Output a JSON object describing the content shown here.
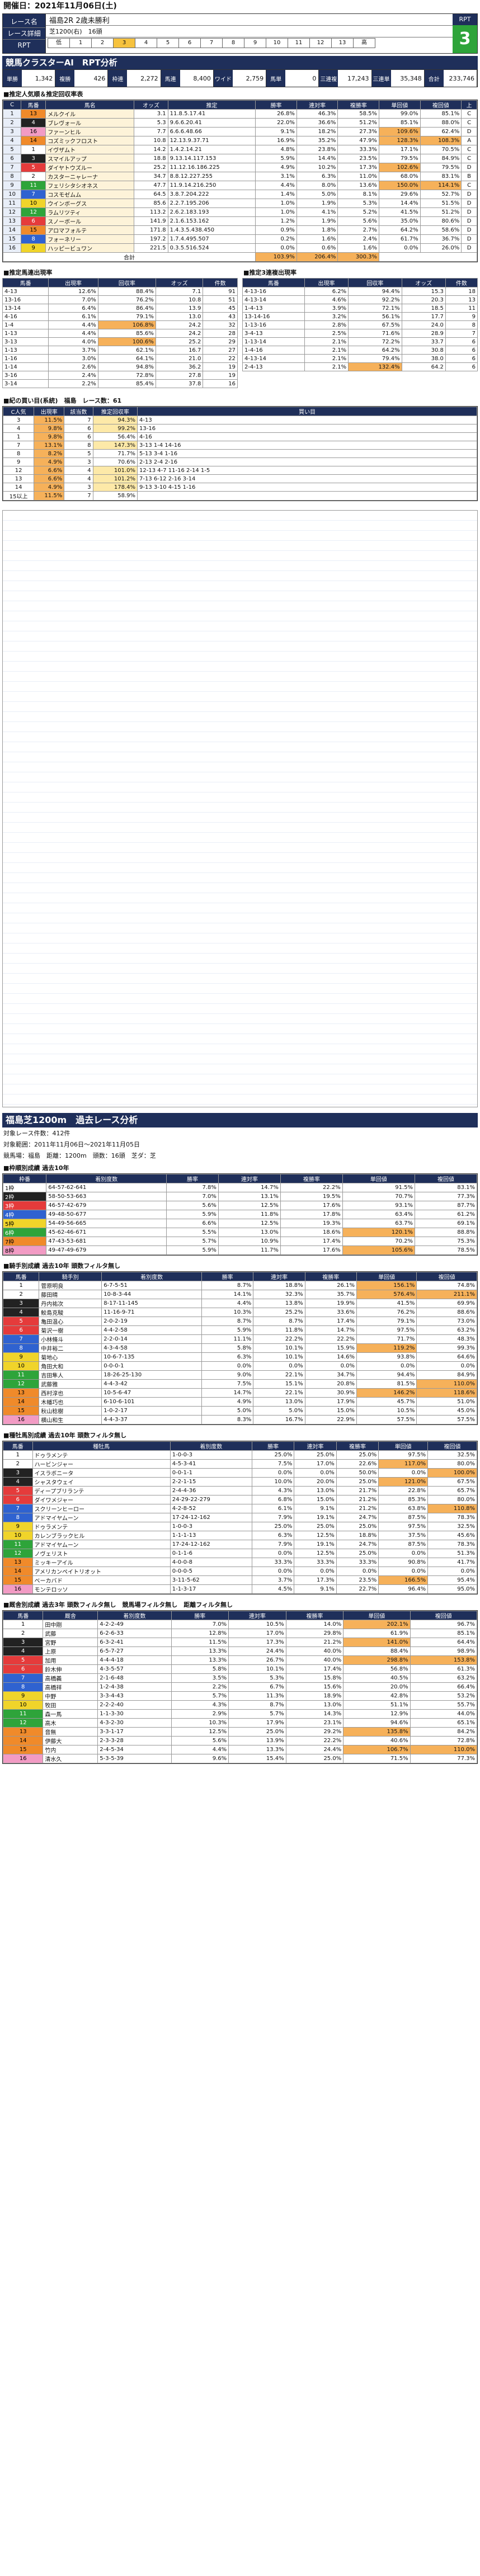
{
  "header": {
    "date": "開催日：2021年11月06日(土)"
  },
  "race": {
    "name_label": "レース名",
    "name": "福島2R 2歳未勝利",
    "detail_label": "レース詳細",
    "detail": "芝1200(右)　16頭",
    "rpt_label": "RPT",
    "rpt_value": "3",
    "rpt_scale": [
      "低",
      "1",
      "2",
      "3",
      "4",
      "5",
      "6",
      "7",
      "8",
      "9",
      "10",
      "11",
      "12",
      "13",
      "高"
    ],
    "rpt_on": "3"
  },
  "cluster_title": "競馬クラスターAI　RPT分析",
  "odds_strip": [
    {
      "k": "単勝",
      "v": "1,342"
    },
    {
      "k": "複勝",
      "v": "426"
    },
    {
      "k": "枠連",
      "v": "2,272"
    },
    {
      "k": "馬連",
      "v": "8,400"
    },
    {
      "k": "ワイド",
      "v": "2,759"
    },
    {
      "k": "馬単",
      "v": "0"
    },
    {
      "k": "三連複",
      "v": "17,243"
    },
    {
      "k": "三連単",
      "v": "35,348"
    },
    {
      "k": "合計",
      "v": "233,746"
    }
  ],
  "pop_title": "■推定人気順＆推定回収率表",
  "pop_headers": [
    "C",
    "馬番",
    "馬名",
    "オッズ",
    "推定",
    "勝率",
    "連対率",
    "複勝率",
    "単回値",
    "複回値",
    "上"
  ],
  "pop_rows": [
    [
      "1",
      "13",
      "メルクイル",
      "3.1",
      "11.8.5.17.41",
      "26.8%",
      "46.3%",
      "58.5%",
      "99.0%",
      "85.1%",
      "C"
    ],
    [
      "2",
      "4",
      "ブレヴォール",
      "5.3",
      "9.6.6.20.41",
      "22.0%",
      "36.6%",
      "51.2%",
      "85.1%",
      "88.0%",
      "C"
    ],
    [
      "3",
      "16",
      "ファーンヒル",
      "7.7",
      "6.6.6.48.66",
      "9.1%",
      "18.2%",
      "27.3%",
      "109.6%",
      "62.4%",
      "D"
    ],
    [
      "4",
      "14",
      "コズミックフロスト",
      "10.8",
      "12.13.9.37.71",
      "16.9%",
      "35.2%",
      "47.9%",
      "128.3%",
      "108.3%",
      "A"
    ],
    [
      "5",
      "1",
      "イヴザムト",
      "14.2",
      "1.4.2.14.21",
      "4.8%",
      "23.8%",
      "33.3%",
      "17.1%",
      "70.5%",
      "C"
    ],
    [
      "6",
      "3",
      "スマイルアップ",
      "18.8",
      "9.13.14.117.153",
      "5.9%",
      "14.4%",
      "23.5%",
      "79.5%",
      "84.9%",
      "C"
    ],
    [
      "7",
      "5",
      "ダイヤトウズルー",
      "25.2",
      "11.12.16.186.225",
      "4.9%",
      "10.2%",
      "17.3%",
      "102.6%",
      "79.5%",
      "D"
    ],
    [
      "8",
      "2",
      "カスターニャレーナ",
      "34.7",
      "8.8.12.227.255",
      "3.1%",
      "6.3%",
      "11.0%",
      "68.0%",
      "83.1%",
      "B"
    ],
    [
      "9",
      "11",
      "フェリシタシオネス",
      "47.7",
      "11.9.14.216.250",
      "4.4%",
      "8.0%",
      "13.6%",
      "150.0%",
      "114.1%",
      "C"
    ],
    [
      "10",
      "7",
      "コスモゼムム",
      "64.5",
      "3.8.7.204.222",
      "1.4%",
      "5.0%",
      "8.1%",
      "29.6%",
      "52.7%",
      "D"
    ],
    [
      "11",
      "10",
      "ウインボーグス",
      "85.6",
      "2.2.7.195.206",
      "1.0%",
      "1.9%",
      "5.3%",
      "14.4%",
      "51.5%",
      "D"
    ],
    [
      "12",
      "12",
      "ラムリツティ",
      "113.2",
      "2.6.2.183.193",
      "1.0%",
      "4.1%",
      "5.2%",
      "41.5%",
      "51.2%",
      "D"
    ],
    [
      "13",
      "6",
      "スノーボール",
      "141.9",
      "2.1.6.153.162",
      "1.2%",
      "1.9%",
      "5.6%",
      "35.0%",
      "80.6%",
      "D"
    ],
    [
      "14",
      "15",
      "アロマフォルテ",
      "171.8",
      "1.4.3.5.438.450",
      "0.9%",
      "1.8%",
      "2.7%",
      "64.2%",
      "58.6%",
      "D"
    ],
    [
      "15",
      "8",
      "フォーネリー",
      "197.2",
      "1.7.4.495.507",
      "0.2%",
      "1.6%",
      "2.4%",
      "61.7%",
      "36.7%",
      "D"
    ],
    [
      "16",
      "9",
      "ハッピービュワン",
      "221.5",
      "0.3.5.516.524",
      "0.0%",
      "0.6%",
      "1.6%",
      "0.0%",
      "26.0%",
      "D"
    ]
  ],
  "pop_total": {
    "label": "合計",
    "a": "103.9%",
    "b": "206.4%",
    "c": "300.3%"
  },
  "baren_title": "■推定馬連出現率",
  "baren_headers": [
    "馬番",
    "出現率",
    "回収率",
    "オッズ",
    "件数"
  ],
  "baren_rows": [
    [
      "4-13",
      "12.6%",
      "88.4%",
      "7.1",
      "91"
    ],
    [
      "13-16",
      "7.0%",
      "76.2%",
      "10.8",
      "51"
    ],
    [
      "13-14",
      "6.4%",
      "86.4%",
      "13.9",
      "45"
    ],
    [
      "4-16",
      "6.1%",
      "79.1%",
      "13.0",
      "43"
    ],
    [
      "1-4",
      "4.4%",
      "106.8%",
      "24.2",
      "32"
    ],
    [
      "1-13",
      "4.4%",
      "85.6%",
      "24.2",
      "28"
    ],
    [
      "3-13",
      "4.0%",
      "100.6%",
      "25.2",
      "29"
    ],
    [
      "1-13",
      "3.7%",
      "62.1%",
      "16.7",
      "27"
    ],
    [
      "1-16",
      "3.0%",
      "64.1%",
      "21.0",
      "22"
    ],
    [
      "1-14",
      "2.6%",
      "94.8%",
      "36.2",
      "19"
    ],
    [
      "3-16",
      "2.4%",
      "72.8%",
      "27.8",
      "19"
    ],
    [
      "3-14",
      "2.2%",
      "85.4%",
      "37.8",
      "16"
    ]
  ],
  "sanren_title": "■推定3連複出現率",
  "sanren_headers": [
    "馬番",
    "出現率",
    "回収率",
    "オッズ",
    "件数"
  ],
  "sanren_rows": [
    [
      "4-13-16",
      "6.2%",
      "94.4%",
      "15.3",
      "18"
    ],
    [
      "4-13-14",
      "4.6%",
      "92.2%",
      "20.3",
      "13"
    ],
    [
      "1-4-13",
      "3.9%",
      "72.1%",
      "18.5",
      "11"
    ],
    [
      "13-14-16",
      "3.2%",
      "56.1%",
      "17.7",
      "9"
    ],
    [
      "1-13-16",
      "2.8%",
      "67.5%",
      "24.0",
      "8"
    ],
    [
      "3-4-13",
      "2.5%",
      "71.6%",
      "28.9",
      "7"
    ],
    [
      "1-13-14",
      "2.1%",
      "72.2%",
      "33.7",
      "6"
    ],
    [
      "1-4-16",
      "2.1%",
      "64.2%",
      "30.8",
      "6"
    ],
    [
      "4-13-14",
      "2.1%",
      "79.4%",
      "38.0",
      "6"
    ],
    [
      "2-4-13",
      "2.1%",
      "132.4%",
      "64.2",
      "6"
    ]
  ],
  "kakoyo_title": "■紀の買い目(系統)　福島　レース数：61",
  "kakoyo_headers": [
    "C人気",
    "出現率",
    "該当数",
    "推定回収率",
    "買い目"
  ],
  "kakoyo_rows": [
    [
      "3",
      "11.5%",
      "7",
      "94.3%",
      "4-13"
    ],
    [
      "4",
      "9.8%",
      "6",
      "99.2%",
      "13-16"
    ],
    [
      "1",
      "9.8%",
      "6",
      "56.4%",
      "4-16"
    ],
    [
      "7",
      "13.1%",
      "8",
      "147.3%",
      "3-13  1-4  14-16"
    ],
    [
      "8",
      "8.2%",
      "5",
      "71.7%",
      "5-13  3-4  1-16"
    ],
    [
      "9",
      "4.9%",
      "3",
      "70.6%",
      "2-13  2-4  2-16"
    ],
    [
      "12",
      "6.6%",
      "4",
      "101.0%",
      "12-13  4-7  11-16  2-14  1-5"
    ],
    [
      "13",
      "6.6%",
      "4",
      "101.2%",
      "7-13  6-12  2-16  3-14"
    ],
    [
      "14",
      "4.9%",
      "3",
      "178.4%",
      "9-13  3-10  4-15  1-16"
    ],
    [
      "15以上",
      "11.5%",
      "7",
      "58.9%",
      ""
    ]
  ],
  "section2": {
    "title": "福島芝1200m　過去レース分析",
    "lines": [
      "対象レース件数：412件",
      "対象範囲：2011年11月06日〜2021年11月05日",
      "競馬場：福島　距離：1200m　頭数：16頭　芝ダ：芝"
    ]
  },
  "waku_title": "■枠順別成績 過去10年",
  "waku_headers": [
    "枠番",
    "着別度数",
    "勝率",
    "連対率",
    "複勝率",
    "単回値",
    "複回値"
  ],
  "waku_rows": [
    [
      "1枠",
      "64-57-62-641",
      "7.8%",
      "14.7%",
      "22.2%",
      "91.5%",
      "83.1%"
    ],
    [
      "2枠",
      "58-50-53-663",
      "7.0%",
      "13.1%",
      "19.5%",
      "70.7%",
      "77.3%"
    ],
    [
      "3枠",
      "46-57-42-679",
      "5.6%",
      "12.5%",
      "17.6%",
      "93.1%",
      "87.7%"
    ],
    [
      "4枠",
      "49-48-50-677",
      "5.9%",
      "11.8%",
      "17.8%",
      "63.4%",
      "61.2%"
    ],
    [
      "5枠",
      "54-49-56-665",
      "6.6%",
      "12.5%",
      "19.3%",
      "63.7%",
      "69.1%"
    ],
    [
      "6枠",
      "45-62-46-671",
      "5.5%",
      "13.0%",
      "18.6%",
      "120.1%",
      "88.8%"
    ],
    [
      "7枠",
      "47-43-53-681",
      "5.7%",
      "10.9%",
      "17.4%",
      "70.2%",
      "75.3%"
    ],
    [
      "8枠",
      "49-47-49-679",
      "5.9%",
      "11.7%",
      "17.6%",
      "105.6%",
      "78.5%"
    ]
  ],
  "jockey_title": "■騎手別成績 過去10年 頭数フィルタ無し",
  "jockey_headers": [
    "馬番",
    "騎手別",
    "着別度数",
    "勝率",
    "連対率",
    "複勝率",
    "単回値",
    "複回値"
  ],
  "jockey_rows": [
    [
      "1",
      "菅原明良",
      "6-7-5-51",
      "8.7%",
      "18.8%",
      "26.1%",
      "156.1%",
      "74.8%"
    ],
    [
      "2",
      "藤田晴",
      "10-8-3-44",
      "14.1%",
      "32.3%",
      "35.7%",
      "576.4%",
      "211.1%"
    ],
    [
      "3",
      "丹内祐次",
      "8-17-11-145",
      "4.4%",
      "13.8%",
      "19.9%",
      "41.5%",
      "69.9%"
    ],
    [
      "4",
      "鮫島克駿",
      "11-16-9-71",
      "10.3%",
      "25.2%",
      "33.6%",
      "76.2%",
      "88.6%"
    ],
    [
      "5",
      "亀田温心",
      "2-0-2-19",
      "8.7%",
      "8.7%",
      "17.4%",
      "79.1%",
      "73.0%"
    ],
    [
      "6",
      "菊沢一樹",
      "4-4-2-58",
      "5.9%",
      "11.8%",
      "14.7%",
      "97.5%",
      "63.2%"
    ],
    [
      "7",
      "小林脩斗",
      "2-2-0-14",
      "11.1%",
      "22.2%",
      "22.2%",
      "71.7%",
      "48.3%"
    ],
    [
      "8",
      "中井裕二",
      "4-3-4-58",
      "5.8%",
      "10.1%",
      "15.9%",
      "119.2%",
      "99.3%"
    ],
    [
      "9",
      "菊地心",
      "10-6-7-135",
      "6.3%",
      "10.1%",
      "14.6%",
      "93.8%",
      "64.6%"
    ],
    [
      "10",
      "角田大和",
      "0-0-0-1",
      "0.0%",
      "0.0%",
      "0.0%",
      "0.0%",
      "0.0%"
    ],
    [
      "11",
      "吉田隼人",
      "18-26-25-130",
      "9.0%",
      "22.1%",
      "34.7%",
      "94.4%",
      "84.9%"
    ],
    [
      "12",
      "武藤雅",
      "4-4-3-42",
      "7.5%",
      "15.1%",
      "20.8%",
      "81.5%",
      "110.0%"
    ],
    [
      "13",
      "西村淳也",
      "10-5-6-47",
      "14.7%",
      "22.1%",
      "30.9%",
      "146.2%",
      "118.6%"
    ],
    [
      "14",
      "木幡巧也",
      "6-10-6-101",
      "4.9%",
      "13.0%",
      "17.9%",
      "45.7%",
      "51.0%"
    ],
    [
      "15",
      "秋山稔樹",
      "1-0-2-17",
      "5.0%",
      "5.0%",
      "15.0%",
      "10.5%",
      "45.0%"
    ],
    [
      "16",
      "横山和生",
      "4-4-3-37",
      "8.3%",
      "16.7%",
      "22.9%",
      "57.5%",
      "57.5%"
    ]
  ],
  "sire_title": "■種牡馬別成績 過去10年 頭数フィルタ無し",
  "sire_headers": [
    "馬番",
    "種牡馬",
    "着別度数",
    "勝率",
    "連対率",
    "複勝率",
    "単回値",
    "複回値"
  ],
  "sire_rows": [
    [
      "1",
      "ドゥラメンテ",
      "1-0-0-3",
      "25.0%",
      "25.0%",
      "25.0%",
      "97.5%",
      "32.5%"
    ],
    [
      "2",
      "ハービンジャー",
      "4-5-3-41",
      "7.5%",
      "17.0%",
      "22.6%",
      "117.0%",
      "80.0%"
    ],
    [
      "3",
      "イスラボニータ",
      "0-0-1-1",
      "0.0%",
      "0.0%",
      "50.0%",
      "0.0%",
      "100.0%"
    ],
    [
      "4",
      "シャスタウェイ",
      "2-2-1-15",
      "10.0%",
      "20.0%",
      "25.0%",
      "121.0%",
      "67.5%"
    ],
    [
      "5",
      "ディープブリランテ",
      "2-4-4-36",
      "4.3%",
      "13.0%",
      "21.7%",
      "22.8%",
      "65.7%"
    ],
    [
      "6",
      "ダイワメジャー",
      "24-29-22-279",
      "6.8%",
      "15.0%",
      "21.2%",
      "85.3%",
      "80.0%"
    ],
    [
      "7",
      "スクリーンヒーロー",
      "4-2-8-52",
      "6.1%",
      "9.1%",
      "21.2%",
      "63.8%",
      "110.8%"
    ],
    [
      "8",
      "アドマイヤムーン",
      "17-24-12-162",
      "7.9%",
      "19.1%",
      "24.7%",
      "87.5%",
      "78.3%"
    ],
    [
      "9",
      "ドゥラメンテ",
      "1-0-0-3",
      "25.0%",
      "25.0%",
      "25.0%",
      "97.5%",
      "32.5%"
    ],
    [
      "10",
      "カレンブラックヒル",
      "1-1-1-13",
      "6.3%",
      "12.5%",
      "18.8%",
      "37.5%",
      "45.6%"
    ],
    [
      "11",
      "アドマイヤムーン",
      "17-24-12-162",
      "7.9%",
      "19.1%",
      "24.7%",
      "87.5%",
      "78.3%"
    ],
    [
      "12",
      "ノヴェリスト",
      "0-1-1-6",
      "0.0%",
      "12.5%",
      "25.0%",
      "0.0%",
      "51.3%"
    ],
    [
      "13",
      "ミッキーアイル",
      "4-0-0-8",
      "33.3%",
      "33.3%",
      "33.3%",
      "90.8%",
      "41.7%"
    ],
    [
      "14",
      "アメリカンペイトリオット",
      "0-0-0-5",
      "0.0%",
      "0.0%",
      "0.0%",
      "0.0%",
      "0.0%"
    ],
    [
      "15",
      "ベーカバド",
      "3-11-5-62",
      "3.7%",
      "17.3%",
      "23.5%",
      "166.5%",
      "95.4%"
    ],
    [
      "16",
      "モンテロッソ",
      "1-1-3-17",
      "4.5%",
      "9.1%",
      "22.7%",
      "96.4%",
      "95.0%"
    ]
  ],
  "trainer_title": "■厩舎別成績 過去3年 頭数フィルタ無し　競馬場フィルタ無し　距離フィルタ無し",
  "trainer_headers": [
    "馬番",
    "厩舎",
    "着別度数",
    "勝率",
    "連対率",
    "複勝率",
    "単回値",
    "複回値"
  ],
  "trainer_rows": [
    [
      "1",
      "田中剛",
      "4-2-2-49",
      "7.0%",
      "10.5%",
      "14.0%",
      "202.1%",
      "96.7%"
    ],
    [
      "2",
      "武藤",
      "6-2-6-33",
      "12.8%",
      "17.0%",
      "29.8%",
      "61.9%",
      "85.1%"
    ],
    [
      "3",
      "宮野",
      "6-3-2-41",
      "11.5%",
      "17.3%",
      "21.2%",
      "141.0%",
      "64.4%"
    ],
    [
      "4",
      "上原",
      "6-5-7-27",
      "13.3%",
      "24.4%",
      "40.0%",
      "88.4%",
      "98.9%"
    ],
    [
      "5",
      "加用",
      "4-4-4-18",
      "13.3%",
      "26.7%",
      "40.0%",
      "298.8%",
      "153.8%"
    ],
    [
      "6",
      "鈴木伸",
      "4-3-5-57",
      "5.8%",
      "10.1%",
      "17.4%",
      "56.8%",
      "61.3%"
    ],
    [
      "7",
      "高橋義",
      "2-1-6-48",
      "3.5%",
      "5.3%",
      "15.8%",
      "40.5%",
      "63.2%"
    ],
    [
      "8",
      "高橋祥",
      "1-2-4-38",
      "2.2%",
      "6.7%",
      "15.6%",
      "20.0%",
      "66.4%"
    ],
    [
      "9",
      "中野",
      "3-3-4-43",
      "5.7%",
      "11.3%",
      "18.9%",
      "42.8%",
      "53.2%"
    ],
    [
      "10",
      "牧田",
      "2-2-2-40",
      "4.3%",
      "8.7%",
      "13.0%",
      "51.1%",
      "55.7%"
    ],
    [
      "11",
      "森一馬",
      "1-1-3-30",
      "2.9%",
      "5.7%",
      "14.3%",
      "12.9%",
      "44.0%"
    ],
    [
      "12",
      "高木",
      "4-3-2-30",
      "10.3%",
      "17.9%",
      "23.1%",
      "94.6%",
      "65.1%"
    ],
    [
      "13",
      "音無",
      "3-3-1-17",
      "12.5%",
      "25.0%",
      "29.2%",
      "135.8%",
      "84.2%"
    ],
    [
      "14",
      "伊藤大",
      "2-3-3-28",
      "5.6%",
      "13.9%",
      "22.2%",
      "40.6%",
      "72.8%"
    ],
    [
      "15",
      "竹内",
      "2-4-5-34",
      "4.4%",
      "13.3%",
      "24.4%",
      "106.7%",
      "110.0%"
    ],
    [
      "16",
      "清水久",
      "5-3-5-39",
      "9.6%",
      "15.4%",
      "25.0%",
      "71.5%",
      "77.3%"
    ]
  ]
}
